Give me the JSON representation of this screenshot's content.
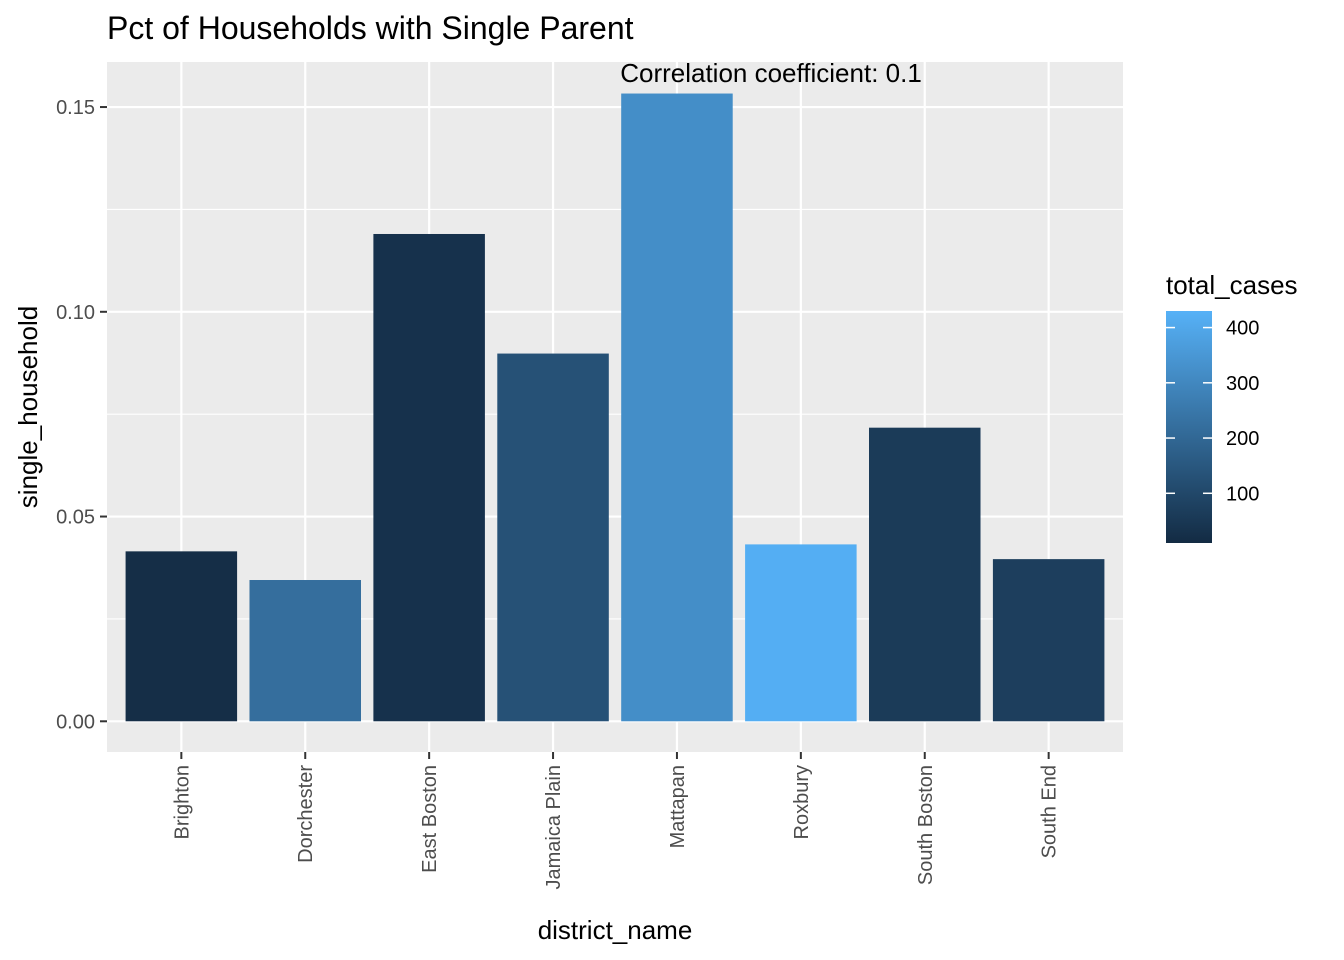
{
  "chart_data": {
    "type": "bar",
    "title": "Pct of Households with Single Parent",
    "xlabel": "district_name",
    "ylabel": "single_household",
    "annotation": "Correlation coefficient:  0.1",
    "categories": [
      "Brighton",
      "Dorchester",
      "East Boston",
      "Jamaica Plain",
      "Mattapan",
      "Roxbury",
      "South Boston",
      "South End"
    ],
    "values": [
      0.0415,
      0.0345,
      0.119,
      0.0898,
      0.1533,
      0.0432,
      0.0717,
      0.0396
    ],
    "fill_values": [
      20,
      220,
      30,
      130,
      320,
      420,
      60,
      70
    ],
    "y_ticks": [
      0.0,
      0.05,
      0.1,
      0.15
    ],
    "y_tick_labels": [
      "0.00",
      "0.05",
      "0.10",
      "0.15"
    ],
    "ylim": [
      -0.0075,
      0.161
    ],
    "grid": true,
    "legend": {
      "title": "total_cases",
      "ticks": [
        100,
        200,
        300,
        400
      ],
      "range": [
        10,
        430
      ],
      "color_low": "#132B43",
      "color_high": "#56B1F7",
      "placement": "right"
    }
  }
}
